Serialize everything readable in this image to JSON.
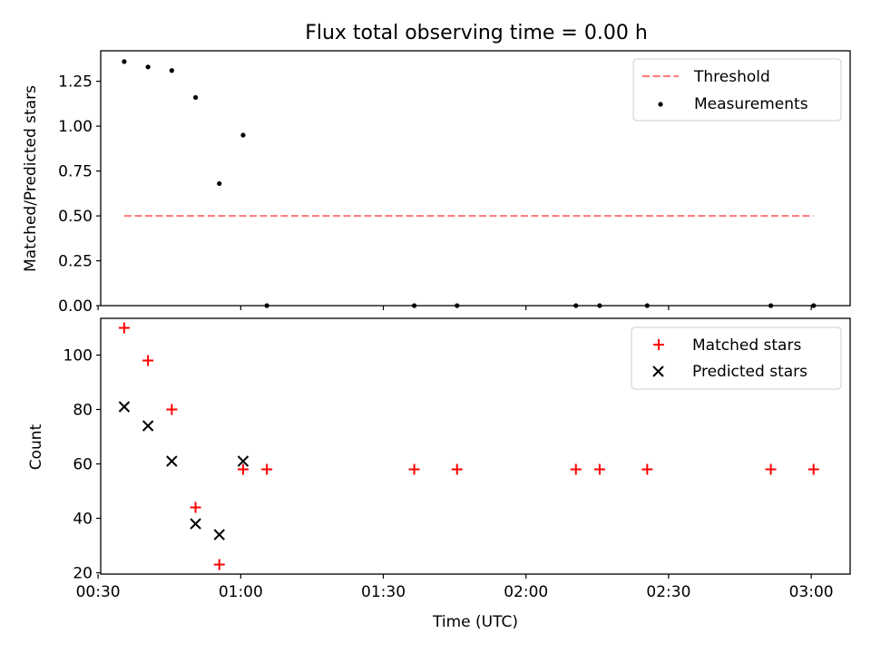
{
  "figure": {
    "title": "Flux total observing time = 0.00 h",
    "xlabel": "Time (UTC)"
  },
  "chart_data": [
    {
      "type": "scatter",
      "panel": "top",
      "ylabel": "Matched/Predicted stars",
      "xlim": [
        "00:30:33",
        "03:08:11"
      ],
      "ylim": [
        0.0,
        1.42
      ],
      "yticks": [
        0.0,
        0.25,
        0.5,
        0.75,
        1.0,
        1.25
      ],
      "ytick_labels": [
        "0.00",
        "0.25",
        "0.50",
        "0.75",
        "1.00",
        "1.25"
      ],
      "x_tick_labels": [
        "00:30",
        "01:00",
        "01:30",
        "02:00",
        "02:30",
        "03:00"
      ],
      "x_tick_labels_visible": false,
      "legend_position": "upper right",
      "series": [
        {
          "name": "Threshold",
          "style": "dashed line",
          "color": "#ff7f7f",
          "x": [
            "00:35:30",
            "03:00:30"
          ],
          "y": [
            0.5,
            0.5
          ]
        },
        {
          "name": "Measurements",
          "style": "dot",
          "color": "#000000",
          "x": [
            "00:35:30",
            "00:40:30",
            "00:45:30",
            "00:50:30",
            "00:55:30",
            "01:00:30",
            "01:05:30",
            "01:36:30",
            "01:45:30",
            "02:10:30",
            "02:15:30",
            "02:25:30",
            "02:51:30",
            "03:00:30"
          ],
          "y": [
            1.36,
            1.33,
            1.31,
            1.16,
            0.68,
            0.95,
            0.0,
            0.0,
            0.0,
            0.0,
            0.0,
            0.0,
            0.0,
            0.0
          ]
        }
      ]
    },
    {
      "type": "scatter",
      "panel": "bottom",
      "ylabel": "Count",
      "xlim": [
        "00:30:33",
        "03:08:11"
      ],
      "ylim": [
        19.5,
        113.5
      ],
      "yticks": [
        20,
        40,
        60,
        80,
        100
      ],
      "ytick_labels": [
        "20",
        "40",
        "60",
        "80",
        "100"
      ],
      "x_tick_labels": [
        "00:30",
        "01:00",
        "01:30",
        "02:00",
        "02:30",
        "03:00"
      ],
      "legend_position": "upper right",
      "series": [
        {
          "name": "Matched stars",
          "marker": "+",
          "color": "#ff0000",
          "x": [
            "00:35:30",
            "00:40:30",
            "00:45:30",
            "00:50:30",
            "00:55:30",
            "01:00:30",
            "01:05:30",
            "01:36:30",
            "01:45:30",
            "02:10:30",
            "02:15:30",
            "02:25:30",
            "02:51:30",
            "03:00:30"
          ],
          "y": [
            110,
            98,
            80,
            44,
            23,
            58,
            58,
            58,
            58,
            58,
            58,
            58,
            58,
            58
          ]
        },
        {
          "name": "Predicted stars",
          "marker": "x",
          "color": "#000000",
          "x": [
            "00:35:30",
            "00:40:30",
            "00:45:30",
            "00:50:30",
            "00:55:30",
            "01:00:30"
          ],
          "y": [
            81,
            74,
            61,
            38,
            34,
            61
          ]
        }
      ]
    }
  ]
}
